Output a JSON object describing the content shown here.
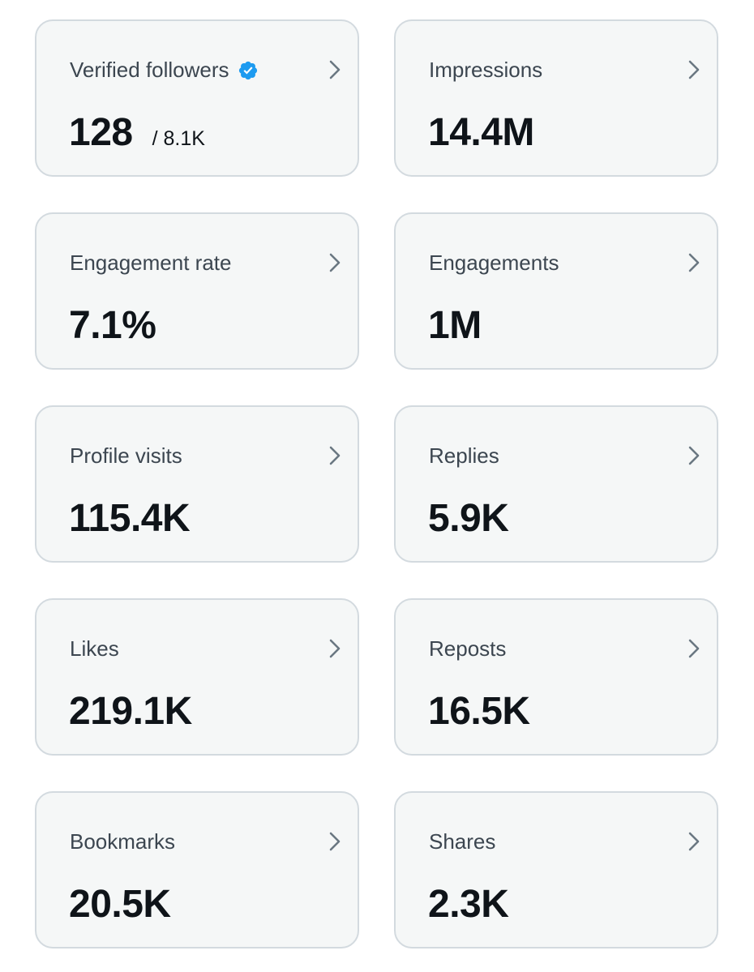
{
  "accent_color": "#1d9bf0",
  "cards": [
    {
      "label": "Verified followers",
      "value": "128",
      "suffix": "/ 8.1K",
      "verified_icon": "verified-badge-icon"
    },
    {
      "label": "Impressions",
      "value": "14.4M"
    },
    {
      "label": "Engagement rate",
      "value": "7.1%"
    },
    {
      "label": "Engagements",
      "value": "1M"
    },
    {
      "label": "Profile visits",
      "value": "115.4K"
    },
    {
      "label": "Replies",
      "value": "5.9K"
    },
    {
      "label": "Likes",
      "value": "219.1K"
    },
    {
      "label": "Reposts",
      "value": "16.5K"
    },
    {
      "label": "Bookmarks",
      "value": "20.5K"
    },
    {
      "label": "Shares",
      "value": "2.3K"
    }
  ]
}
